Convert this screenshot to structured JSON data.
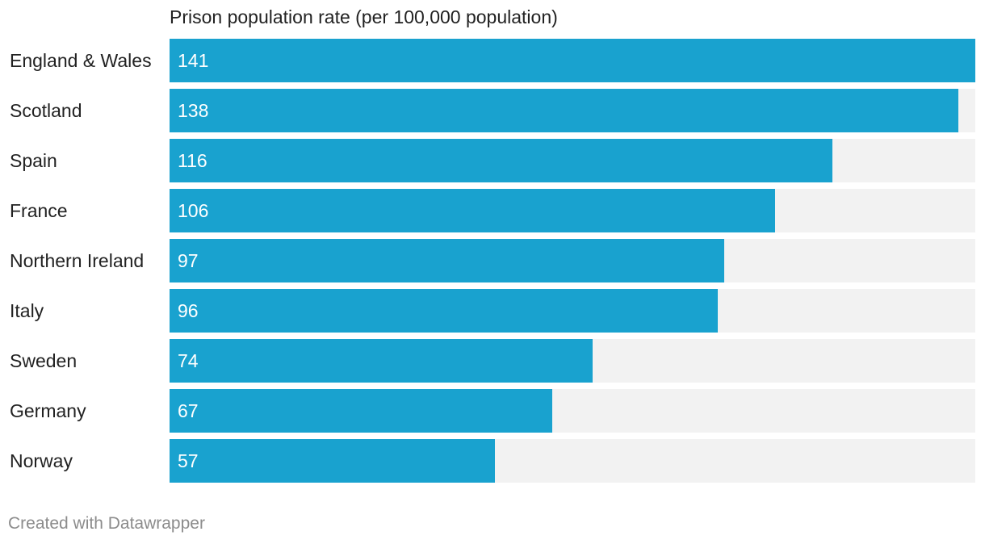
{
  "chart_data": {
    "type": "bar",
    "orientation": "horizontal",
    "column_header": "Prison population rate (per 100,000 population)",
    "categories": [
      "England & Wales",
      "Scotland",
      "Spain",
      "France",
      "Northern Ireland",
      "Italy",
      "Sweden",
      "Germany",
      "Norway"
    ],
    "values": [
      141,
      138,
      116,
      106,
      97,
      96,
      74,
      67,
      57
    ],
    "xlim": [
      0,
      141
    ],
    "grid": false,
    "colors": {
      "bar": "#19a2cf",
      "track": "#f2f2f2",
      "value_label": "#ffffff"
    }
  },
  "footer": {
    "credit": "Created with Datawrapper"
  }
}
